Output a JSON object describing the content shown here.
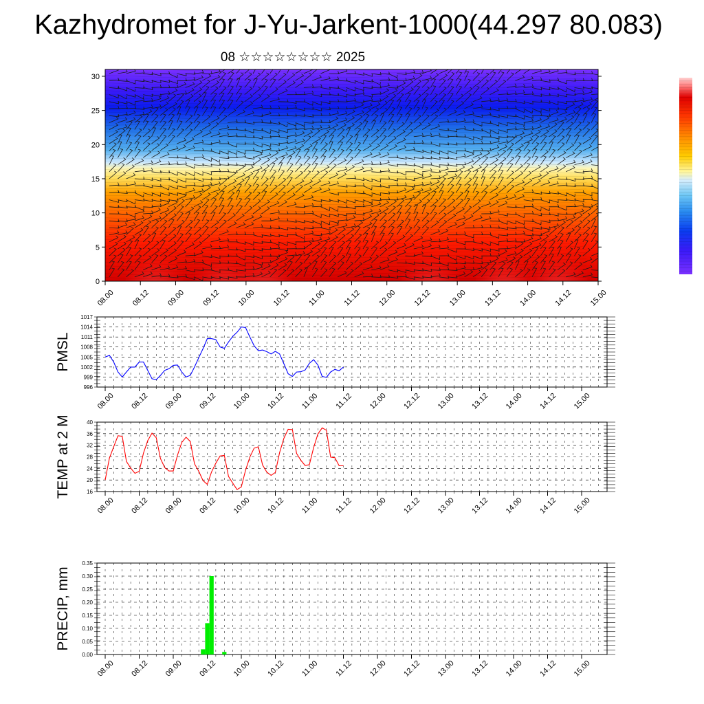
{
  "title": "Kazhydromet for J-Yu-Jarkent-1000(44.297 80.083)",
  "subtitle": "08 ☆☆☆☆☆☆☆☆ 2025",
  "time_labels": [
    "08.00",
    "08.12",
    "09.00",
    "09.12",
    "10.00",
    "10.12",
    "11.00",
    "11.12",
    "12.00",
    "12.12",
    "13.00",
    "13.12",
    "14.00",
    "14.12",
    "15.00"
  ],
  "chart_data": [
    {
      "type": "heatmap",
      "name": "vertical-cross-section",
      "x": [
        "08.00",
        "08.12",
        "09.00",
        "09.12",
        "10.00",
        "10.12",
        "11.00",
        "11.12",
        "12.00",
        "12.12",
        "13.00",
        "13.12",
        "14.00",
        "14.12",
        "15.00"
      ],
      "ylim": [
        0,
        31
      ],
      "yticks": [
        0,
        5,
        10,
        15,
        20,
        25,
        30
      ],
      "colorbar": [
        "#6600ff",
        "#3300ff",
        "#0055ff",
        "#2288ff",
        "#55bbff",
        "#aaddff",
        "#ffff99",
        "#ffcc00",
        "#ff9900",
        "#ff5500",
        "#ff0000",
        "#cc0000",
        "#ff9999"
      ],
      "wind_barbs": true
    },
    {
      "type": "line",
      "ylabel": "PMSL",
      "ylim": [
        996,
        1017
      ],
      "yticks": [
        996,
        999,
        1002,
        1005,
        1008,
        1011,
        1014,
        1017
      ],
      "x_step_hours": 3,
      "color": "#0000ff",
      "values": [
        1005,
        1005.5,
        1003.5,
        1000.5,
        999,
        1000.5,
        1002,
        1002,
        1003.5,
        1003.5,
        1001,
        998.5,
        998.2,
        999.5,
        1001,
        1001.5,
        1002.5,
        1002.6,
        1000.5,
        999,
        999.5,
        1002,
        1004.8,
        1007.5,
        1010.5,
        1010.5,
        1010.2,
        1008,
        1007.6,
        1009.5,
        1011.2,
        1012.4,
        1014,
        1013.8,
        1011,
        1008.4,
        1006.9,
        1007.1,
        1006.6,
        1005.9,
        1006.7,
        1005.9,
        1003,
        1000,
        999.2,
        1000.5,
        1000.6,
        1001.1,
        1003.1,
        1004.2,
        1002.6,
        999.2,
        998.9,
        1000.5,
        1001.3,
        1000.9,
        1002
      ]
    },
    {
      "type": "line",
      "ylabel": "TEMP at 2 M",
      "ylim": [
        16,
        40
      ],
      "yticks": [
        16,
        20,
        24,
        28,
        32,
        36,
        40
      ],
      "x_step_hours": 3,
      "color": "#ff0000",
      "values": [
        20,
        27.6,
        31.5,
        35.3,
        35.1,
        26.4,
        24.1,
        22.3,
        23,
        29.3,
        33.6,
        36.2,
        34.6,
        27.4,
        24.3,
        23.1,
        23.1,
        28.6,
        33,
        34.8,
        33.3,
        25.6,
        23,
        19.8,
        18.5,
        22.8,
        25.8,
        28.3,
        28.5,
        21.2,
        18.9,
        16.7,
        17.6,
        23.4,
        27.9,
        31,
        31.5,
        25.2,
        22.7,
        21.6,
        22.6,
        29.5,
        34.4,
        37.5,
        37.4,
        29.2,
        26.8,
        25,
        25.3,
        31.2,
        35.9,
        38,
        37.2,
        27.9,
        27.7,
        24.9,
        24.9
      ]
    },
    {
      "type": "bar",
      "ylabel": "PRECIP, mm",
      "ylim": [
        0,
        0.35
      ],
      "yticks": [
        "0.00",
        "0.05",
        "0.10",
        "0.15",
        "0.20",
        "0.25",
        "0.30",
        "0.35"
      ],
      "x_step_hours": 3,
      "color": "#00ee00",
      "values": [
        0,
        0,
        0,
        0,
        0,
        0,
        0,
        0,
        0,
        0,
        0,
        0,
        0,
        0,
        0,
        0,
        0,
        0,
        0,
        0,
        0,
        0,
        0,
        0.02,
        0.12,
        0.3,
        0,
        0,
        0.01,
        0,
        0,
        0,
        0,
        0,
        0,
        0,
        0,
        0,
        0,
        0,
        0,
        0,
        0,
        0,
        0,
        0,
        0,
        0,
        0,
        0,
        0,
        0,
        0,
        0,
        0,
        0,
        0
      ]
    }
  ]
}
